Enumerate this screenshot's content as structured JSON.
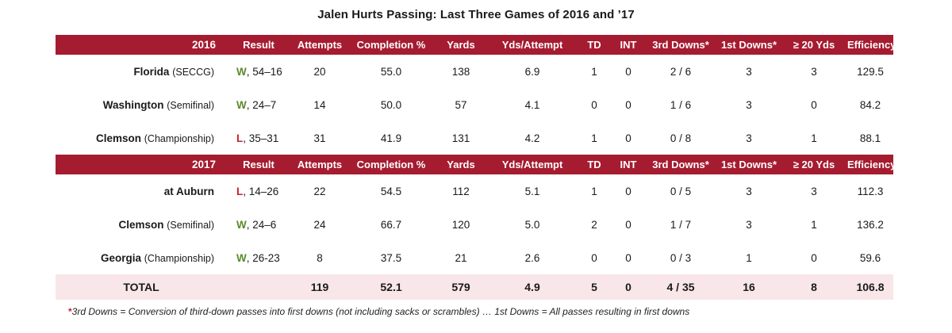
{
  "title": "Jalen Hurts Passing: Last Three Games of 2016 and ’17",
  "columns": [
    "Result",
    "Attempts",
    "Completion %",
    "Yards",
    "Yds/Attempt",
    "TD",
    "INT",
    "3rd Downs*",
    "1st Downs*",
    "≥ 20 Yds",
    "Efficiency"
  ],
  "season_2016": {
    "year": "2016",
    "games": [
      {
        "opponent": "Florida",
        "context": "(SECCG)",
        "result_letter": "W",
        "result_score": ", 54–16",
        "attempts": "20",
        "comp_pct": "55.0",
        "yards": "138",
        "ypa": "6.9",
        "td": "1",
        "int": "0",
        "third_downs": "2 / 6",
        "first_downs": "3",
        "twenty_plus": "3",
        "efficiency": "129.5"
      },
      {
        "opponent": "Washington",
        "context": "(Semifinal)",
        "result_letter": "W",
        "result_score": ", 24–7",
        "attempts": "14",
        "comp_pct": "50.0",
        "yards": "57",
        "ypa": "4.1",
        "td": "0",
        "int": "0",
        "third_downs": "1 / 6",
        "first_downs": "3",
        "twenty_plus": "0",
        "efficiency": "84.2"
      },
      {
        "opponent": "Clemson",
        "context": "(Championship)",
        "result_letter": "L",
        "result_score": ", 35–31",
        "attempts": "31",
        "comp_pct": "41.9",
        "yards": "131",
        "ypa": "4.2",
        "td": "1",
        "int": "0",
        "third_downs": "0 / 8",
        "first_downs": "3",
        "twenty_plus": "1",
        "efficiency": "88.1"
      }
    ]
  },
  "season_2017": {
    "year": "2017",
    "games": [
      {
        "opponent": "at Auburn",
        "context": "",
        "result_letter": "L",
        "result_score": ", 14–26",
        "attempts": "22",
        "comp_pct": "54.5",
        "yards": "112",
        "ypa": "5.1",
        "td": "1",
        "int": "0",
        "third_downs": "0 / 5",
        "first_downs": "3",
        "twenty_plus": "3",
        "efficiency": "112.3"
      },
      {
        "opponent": "Clemson",
        "context": "(Semifinal)",
        "result_letter": "W",
        "result_score": ", 24–6",
        "attempts": "24",
        "comp_pct": "66.7",
        "yards": "120",
        "ypa": "5.0",
        "td": "2",
        "int": "0",
        "third_downs": "1 / 7",
        "first_downs": "3",
        "twenty_plus": "1",
        "efficiency": "136.2"
      },
      {
        "opponent": "Georgia",
        "context": "(Championship)",
        "result_letter": "W",
        "result_score": ", 26-23",
        "attempts": "8",
        "comp_pct": "37.5",
        "yards": "21",
        "ypa": "2.6",
        "td": "0",
        "int": "0",
        "third_downs": "0 / 3",
        "first_downs": "1",
        "twenty_plus": "0",
        "efficiency": "59.6"
      }
    ]
  },
  "total": {
    "label": "TOTAL",
    "attempts": "119",
    "comp_pct": "52.1",
    "yards": "579",
    "ypa": "4.9",
    "td": "5",
    "int": "0",
    "third_downs": "4 / 35",
    "first_downs": "16",
    "twenty_plus": "8",
    "efficiency": "106.8"
  },
  "footnote": {
    "star": "*",
    "text": "3rd Downs = Conversion of third-down passes into first downs (not including sacks or scrambles) … 1st Downs = All passes resulting in first downs"
  },
  "colors": {
    "header_bg": "#a51c30",
    "win": "#5b8a2e",
    "loss": "#c8202f",
    "total_bg": "#f8e6e8"
  }
}
